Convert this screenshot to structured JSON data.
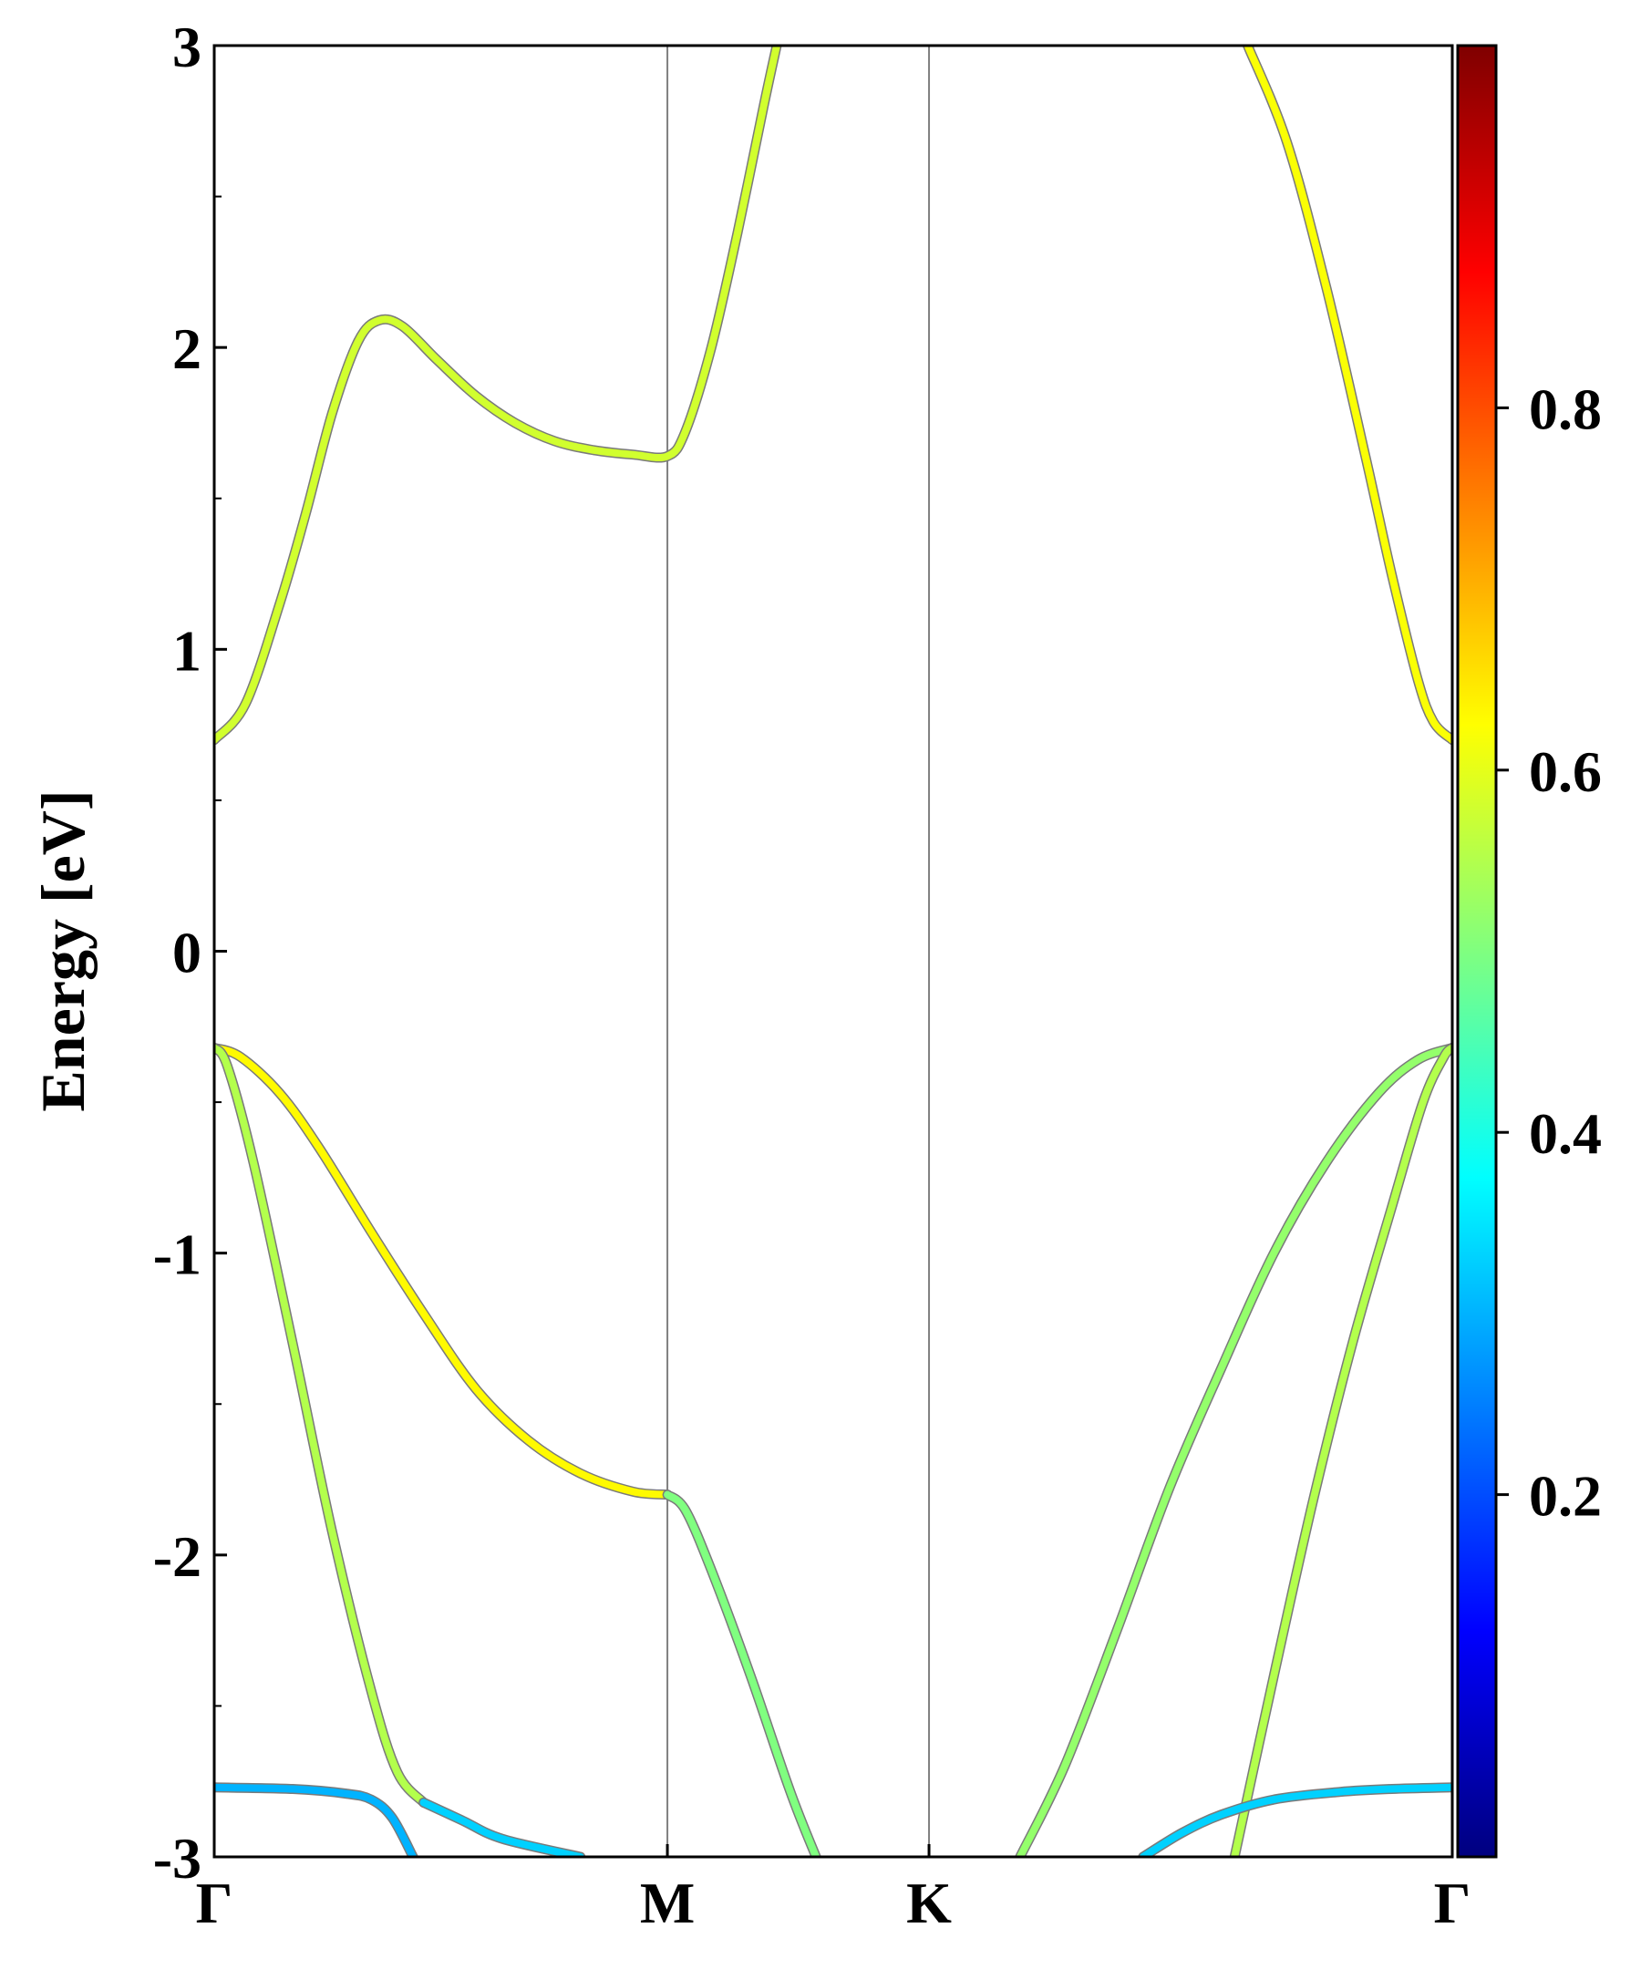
{
  "chart_data": {
    "type": "line",
    "title": "",
    "xlabel": "",
    "ylabel": "Energy [eV]",
    "ylim": [
      -3,
      3
    ],
    "yticks": [
      "-3",
      "-2",
      "-1",
      "0",
      "1",
      "2",
      "3"
    ],
    "k_labels": [
      "Γ",
      "M",
      "K",
      "Γ"
    ],
    "k_positions": [
      0,
      1.732,
      2.732,
      4.732
    ],
    "grid": false,
    "legend": "none",
    "colorbar": {
      "colormap": "jet",
      "range": [
        0,
        1
      ],
      "ticks": [
        "0.2",
        "0.4",
        "0.6",
        "0.8"
      ]
    },
    "series": [
      {
        "color_value": 0.58,
        "points": [
          [
            0,
            0.7
          ],
          [
            0.12,
            0.82
          ],
          [
            0.25,
            1.15
          ],
          [
            0.35,
            1.45
          ],
          [
            0.45,
            1.78
          ],
          [
            0.55,
            2.02
          ],
          [
            0.63,
            2.09
          ],
          [
            0.72,
            2.07
          ],
          [
            0.85,
            1.96
          ],
          [
            1.0,
            1.84
          ],
          [
            1.15,
            1.75
          ],
          [
            1.3,
            1.69
          ],
          [
            1.45,
            1.66
          ],
          [
            1.6,
            1.645
          ],
          [
            1.732,
            1.64
          ],
          [
            1.8,
            1.72
          ],
          [
            1.9,
            2.0
          ],
          [
            2.0,
            2.38
          ],
          [
            2.1,
            2.8
          ],
          [
            2.15,
            3.0
          ]
        ]
      },
      {
        "color_value": 0.62,
        "points": [
          [
            3.95,
            3.0
          ],
          [
            4.1,
            2.68
          ],
          [
            4.25,
            2.2
          ],
          [
            4.4,
            1.64
          ],
          [
            4.5,
            1.25
          ],
          [
            4.6,
            0.9
          ],
          [
            4.66,
            0.76
          ],
          [
            4.732,
            0.7
          ]
        ]
      },
      {
        "color_value": 0.63,
        "points": [
          [
            0,
            -0.32
          ],
          [
            0.1,
            -0.35
          ],
          [
            0.25,
            -0.47
          ],
          [
            0.4,
            -0.65
          ],
          [
            0.6,
            -0.93
          ],
          [
            0.8,
            -1.2
          ],
          [
            1.0,
            -1.45
          ],
          [
            1.2,
            -1.62
          ],
          [
            1.4,
            -1.73
          ],
          [
            1.6,
            -1.79
          ],
          [
            1.732,
            -1.8
          ]
        ]
      },
      {
        "color_value": 0.55,
        "points": [
          [
            0,
            -0.32
          ],
          [
            0.05,
            -0.38
          ],
          [
            0.15,
            -0.7
          ],
          [
            0.3,
            -1.3
          ],
          [
            0.45,
            -1.92
          ],
          [
            0.6,
            -2.45
          ],
          [
            0.7,
            -2.72
          ],
          [
            0.8,
            -2.82
          ]
        ]
      },
      {
        "color_value": 0.5,
        "points": [
          [
            1.732,
            -1.8
          ],
          [
            1.8,
            -1.85
          ],
          [
            1.9,
            -2.05
          ],
          [
            2.05,
            -2.4
          ],
          [
            2.2,
            -2.78
          ],
          [
            2.3,
            -3.0
          ]
        ]
      },
      {
        "color_value": 0.52,
        "points": [
          [
            3.08,
            -3.0
          ],
          [
            3.25,
            -2.7
          ],
          [
            3.45,
            -2.25
          ],
          [
            3.65,
            -1.78
          ],
          [
            3.85,
            -1.38
          ],
          [
            4.05,
            -1.0
          ],
          [
            4.25,
            -0.7
          ],
          [
            4.45,
            -0.47
          ],
          [
            4.6,
            -0.36
          ],
          [
            4.732,
            -0.32
          ]
        ]
      },
      {
        "color_value": 0.55,
        "points": [
          [
            3.9,
            -3.0
          ],
          [
            4.05,
            -2.4
          ],
          [
            4.2,
            -1.82
          ],
          [
            4.35,
            -1.3
          ],
          [
            4.5,
            -0.85
          ],
          [
            4.62,
            -0.5
          ],
          [
            4.7,
            -0.35
          ],
          [
            4.732,
            -0.32
          ]
        ]
      },
      {
        "color_value": 0.3,
        "points": [
          [
            0,
            -2.77
          ],
          [
            0.3,
            -2.775
          ],
          [
            0.5,
            -2.79
          ],
          [
            0.6,
            -2.81
          ],
          [
            0.68,
            -2.87
          ],
          [
            0.76,
            -3.0
          ]
        ]
      },
      {
        "color_value": 0.33,
        "points": [
          [
            0.8,
            -2.82
          ],
          [
            0.95,
            -2.88
          ],
          [
            1.1,
            -2.94
          ],
          [
            1.4,
            -3.0
          ]
        ]
      },
      {
        "color_value": 0.33,
        "points": [
          [
            3.55,
            -3.0
          ],
          [
            3.7,
            -2.92
          ],
          [
            3.85,
            -2.86
          ],
          [
            4.05,
            -2.81
          ],
          [
            4.3,
            -2.785
          ],
          [
            4.5,
            -2.775
          ],
          [
            4.732,
            -2.77
          ]
        ]
      }
    ]
  }
}
